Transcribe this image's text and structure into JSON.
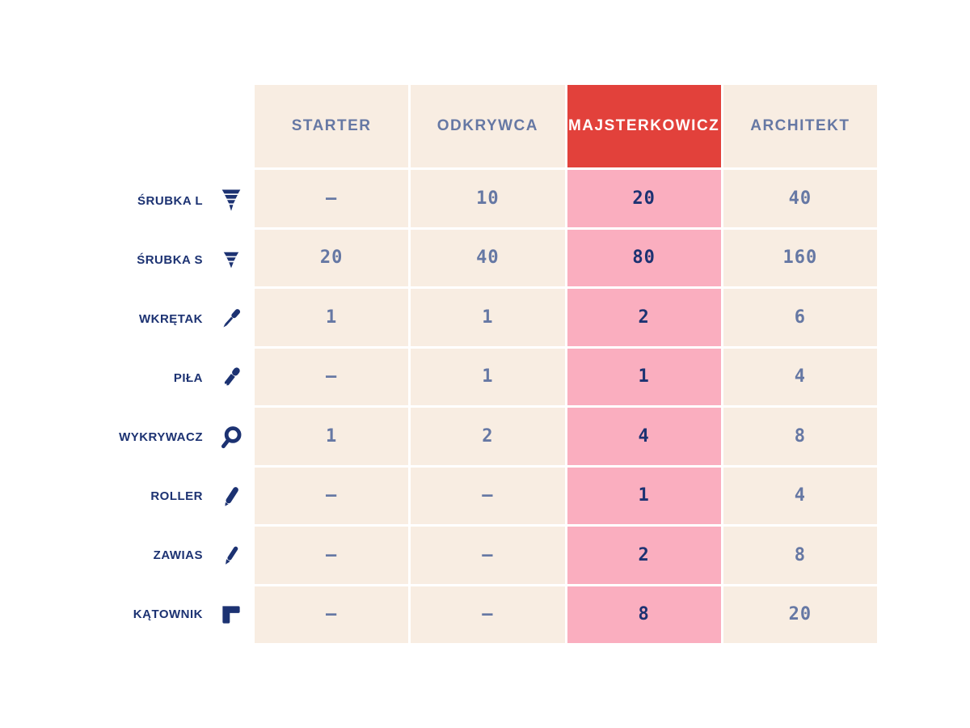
{
  "chart_data": {
    "type": "table",
    "title": "",
    "columns": [
      {
        "label": "STARTER",
        "highlight": false
      },
      {
        "label": "ODKRYWCA",
        "highlight": false
      },
      {
        "label": "MAJSTERKOWICZ",
        "highlight": true
      },
      {
        "label": "ARCHITEKT",
        "highlight": false
      }
    ],
    "rows": [
      {
        "label": "ŚRUBKA L",
        "icon": "screw-large-icon",
        "values": [
          "–",
          "10",
          "20",
          "40"
        ]
      },
      {
        "label": "ŚRUBKA S",
        "icon": "screw-small-icon",
        "values": [
          "20",
          "40",
          "80",
          "160"
        ]
      },
      {
        "label": "WKRĘTAK",
        "icon": "screwdriver-icon",
        "values": [
          "1",
          "1",
          "2",
          "6"
        ]
      },
      {
        "label": "PIŁA",
        "icon": "saw-icon",
        "values": [
          "–",
          "1",
          "1",
          "4"
        ]
      },
      {
        "label": "WYKRYWACZ",
        "icon": "magnifier-icon",
        "values": [
          "1",
          "2",
          "4",
          "8"
        ]
      },
      {
        "label": "ROLLER",
        "icon": "roller-pen-icon",
        "values": [
          "–",
          "–",
          "1",
          "4"
        ]
      },
      {
        "label": "ZAWIAS",
        "icon": "pen-icon",
        "values": [
          "–",
          "–",
          "2",
          "8"
        ]
      },
      {
        "label": "KĄTOWNIK",
        "icon": "angle-square-icon",
        "values": [
          "–",
          "–",
          "8",
          "20"
        ]
      }
    ],
    "legend_position": "none",
    "grid": "white gridlines between cream cells"
  },
  "colors": {
    "cell_background": "#F8EDE2",
    "highlight_column_background": "#FAAEBF",
    "highlight_header_background": "#E2413B",
    "header_text": "#6678A4",
    "value_text": "#6678A4",
    "highlight_value_text": "#1C3272",
    "row_label_text": "#1C3272",
    "gridline": "#FFFFFF"
  }
}
